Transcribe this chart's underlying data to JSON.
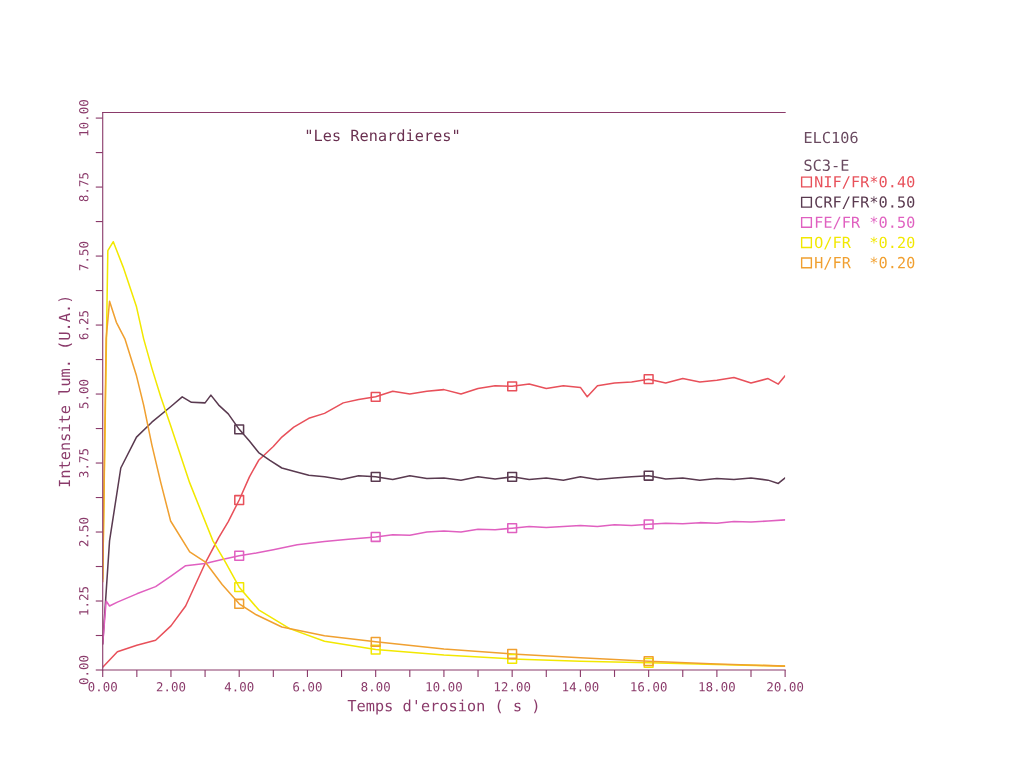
{
  "chart_data": {
    "type": "line",
    "title": "\"Les Renardieres\"",
    "xlabel": "Temps d'erosion ( s )",
    "ylabel": "Intensite lum. (U.A.)",
    "annotations": [
      "ELC106",
      "SC3-E"
    ],
    "xlim": [
      0,
      20
    ],
    "ylim": [
      0,
      10.1
    ],
    "xticks": [
      {
        "value": 0,
        "label": "0.00"
      },
      {
        "value": 1,
        "label": null
      },
      {
        "value": 2,
        "label": "2.00"
      },
      {
        "value": 3,
        "label": null
      },
      {
        "value": 4,
        "label": "4.00"
      },
      {
        "value": 5,
        "label": null
      },
      {
        "value": 6,
        "label": "6.00"
      },
      {
        "value": 7,
        "label": null
      },
      {
        "value": 8,
        "label": "8.00"
      },
      {
        "value": 9,
        "label": null
      },
      {
        "value": 10,
        "label": "10.00"
      },
      {
        "value": 11,
        "label": null
      },
      {
        "value": 12,
        "label": "12.00"
      },
      {
        "value": 13,
        "label": null
      },
      {
        "value": 14,
        "label": "14.00"
      },
      {
        "value": 15,
        "label": null
      },
      {
        "value": 16,
        "label": "16.00"
      },
      {
        "value": 17,
        "label": null
      },
      {
        "value": 18,
        "label": "18.00"
      },
      {
        "value": 19,
        "label": null
      },
      {
        "value": 20,
        "label": "20.00"
      }
    ],
    "yticks": [
      {
        "value": 0,
        "label": "0.00"
      },
      {
        "value": 0.625,
        "label": null
      },
      {
        "value": 1.25,
        "label": "1.25"
      },
      {
        "value": 1.875,
        "label": null
      },
      {
        "value": 2.5,
        "label": "2.50"
      },
      {
        "value": 3.125,
        "label": null
      },
      {
        "value": 3.75,
        "label": "3.75"
      },
      {
        "value": 4.375,
        "label": null
      },
      {
        "value": 5,
        "label": "5.00"
      },
      {
        "value": 5.625,
        "label": null
      },
      {
        "value": 6.25,
        "label": "6.25"
      },
      {
        "value": 6.875,
        "label": null
      },
      {
        "value": 7.5,
        "label": "7.50"
      },
      {
        "value": 8.125,
        "label": null
      },
      {
        "value": 8.75,
        "label": "8.75"
      },
      {
        "value": 9.375,
        "label": null
      },
      {
        "value": 10,
        "label": "10.00"
      }
    ],
    "grid": false,
    "legend": "right",
    "line_style": "solid",
    "series": [
      {
        "name": "NIF/FR*0.40",
        "color": "#e8505a",
        "x": [
          0,
          0.43,
          1.0,
          1.55,
          2.0,
          2.43,
          3.0,
          3.4,
          3.68,
          4.0,
          4.3,
          4.57,
          5.0,
          5.25,
          5.6,
          6.04,
          6.5,
          7.05,
          7.5,
          8.0,
          8.5,
          9.0,
          9.5,
          10.0,
          10.5,
          11.0,
          11.5,
          12.0,
          12.5,
          13.0,
          13.5,
          14.0,
          14.2,
          14.5,
          15.0,
          15.5,
          16.0,
          16.5,
          17.0,
          17.5,
          18.0,
          18.5,
          19.0,
          19.5,
          19.8,
          20.0
        ],
        "values": [
          0.05,
          0.33,
          0.45,
          0.54,
          0.8,
          1.16,
          1.93,
          2.4,
          2.69,
          3.08,
          3.5,
          3.8,
          4.05,
          4.22,
          4.4,
          4.56,
          4.65,
          4.84,
          4.9,
          4.95,
          5.05,
          5.0,
          5.05,
          5.08,
          5.0,
          5.1,
          5.15,
          5.14,
          5.18,
          5.1,
          5.15,
          5.12,
          4.95,
          5.15,
          5.2,
          5.22,
          5.27,
          5.2,
          5.28,
          5.22,
          5.25,
          5.3,
          5.2,
          5.28,
          5.18,
          5.33
        ]
      },
      {
        "name": "CRF/FR*0.50",
        "color": "#5a3a50",
        "x": [
          0,
          0.2,
          0.53,
          0.99,
          1.44,
          1.99,
          2.33,
          2.6,
          3.0,
          3.17,
          3.4,
          3.68,
          4.0,
          4.3,
          4.57,
          4.9,
          5.25,
          5.6,
          6.04,
          6.5,
          7.0,
          7.5,
          8.0,
          8.5,
          9.0,
          9.5,
          10.0,
          10.5,
          11.0,
          11.5,
          12.0,
          12.5,
          13.0,
          13.5,
          14.0,
          14.5,
          15.0,
          15.5,
          16.0,
          16.5,
          17.0,
          17.5,
          18.0,
          18.5,
          19.0,
          19.5,
          19.8,
          20.0
        ],
        "values": [
          0.47,
          2.34,
          3.66,
          4.22,
          4.49,
          4.77,
          4.95,
          4.85,
          4.84,
          4.98,
          4.8,
          4.64,
          4.36,
          4.15,
          3.94,
          3.8,
          3.66,
          3.6,
          3.53,
          3.5,
          3.45,
          3.52,
          3.5,
          3.45,
          3.52,
          3.47,
          3.48,
          3.44,
          3.5,
          3.46,
          3.5,
          3.45,
          3.48,
          3.44,
          3.5,
          3.45,
          3.48,
          3.5,
          3.52,
          3.46,
          3.48,
          3.44,
          3.47,
          3.45,
          3.48,
          3.44,
          3.38,
          3.48
        ]
      },
      {
        "name": "FE/FR *0.50",
        "color": "#e060c0",
        "x": [
          0,
          0.1,
          0.2,
          0.43,
          1.0,
          1.55,
          2.0,
          2.43,
          3.0,
          3.5,
          4.0,
          4.5,
          5.0,
          5.7,
          6.5,
          7.2,
          8.0,
          8.5,
          9.0,
          9.5,
          10.0,
          10.5,
          11.0,
          11.5,
          12.0,
          12.5,
          13.0,
          13.5,
          14.0,
          14.5,
          15.0,
          15.5,
          16.0,
          16.5,
          17.0,
          17.5,
          18.0,
          18.5,
          19.0,
          19.5,
          20.0
        ],
        "values": [
          0.47,
          1.25,
          1.16,
          1.23,
          1.38,
          1.51,
          1.7,
          1.89,
          1.93,
          2.0,
          2.07,
          2.12,
          2.18,
          2.27,
          2.33,
          2.37,
          2.41,
          2.45,
          2.44,
          2.5,
          2.52,
          2.5,
          2.55,
          2.54,
          2.57,
          2.6,
          2.58,
          2.6,
          2.62,
          2.6,
          2.63,
          2.62,
          2.64,
          2.66,
          2.65,
          2.67,
          2.66,
          2.69,
          2.68,
          2.7,
          2.72
        ]
      },
      {
        "name": "O/FR  *0.20",
        "color": "#f2e800",
        "x": [
          0,
          0.15,
          0.31,
          0.6,
          0.99,
          1.2,
          1.44,
          1.7,
          1.99,
          2.55,
          3.23,
          3.6,
          4.0,
          4.57,
          5.48,
          6.5,
          8.0,
          10.0,
          12.0,
          14.0,
          16.0,
          18.0,
          20.0
        ],
        "values": [
          1.65,
          7.6,
          7.76,
          7.3,
          6.58,
          6.0,
          5.47,
          4.95,
          4.43,
          3.39,
          2.34,
          1.95,
          1.5,
          1.09,
          0.75,
          0.52,
          0.37,
          0.27,
          0.2,
          0.16,
          0.13,
          0.1,
          0.07
        ]
      },
      {
        "name": "H/FR  *0.20",
        "color": "#f0a030",
        "x": [
          0,
          0.1,
          0.2,
          0.4,
          0.65,
          0.99,
          1.2,
          1.44,
          1.7,
          1.99,
          2.55,
          3.0,
          3.5,
          4.0,
          4.5,
          5.25,
          6.5,
          8.0,
          10.0,
          12.0,
          14.0,
          16.0,
          18.0,
          20.0
        ],
        "values": [
          1.6,
          6.0,
          6.68,
          6.3,
          6.0,
          5.33,
          4.8,
          4.08,
          3.4,
          2.7,
          2.14,
          1.96,
          1.55,
          1.2,
          1.0,
          0.78,
          0.62,
          0.51,
          0.38,
          0.29,
          0.22,
          0.16,
          0.11,
          0.07
        ]
      },
      {
        "type": "scatter",
        "marker": "square",
        "color": "#e8505a",
        "x": [
          4,
          8,
          12,
          16
        ],
        "values": [
          3.08,
          4.95,
          5.14,
          5.27
        ]
      },
      {
        "type": "scatter",
        "marker": "square",
        "color": "#5a3a50",
        "x": [
          4,
          8,
          12,
          16
        ],
        "values": [
          4.36,
          3.5,
          3.5,
          3.52
        ]
      },
      {
        "type": "scatter",
        "marker": "square",
        "color": "#e060c0",
        "x": [
          4,
          8,
          12,
          16
        ],
        "values": [
          2.07,
          2.41,
          2.57,
          2.64
        ]
      },
      {
        "type": "scatter",
        "marker": "square",
        "color": "#f2e800",
        "x": [
          4,
          8,
          12,
          16
        ],
        "values": [
          1.5,
          0.37,
          0.2,
          0.13
        ]
      },
      {
        "type": "scatter",
        "marker": "square",
        "color": "#f0a030",
        "x": [
          4,
          8,
          12,
          16
        ],
        "values": [
          1.2,
          0.51,
          0.29,
          0.16
        ]
      }
    ]
  }
}
